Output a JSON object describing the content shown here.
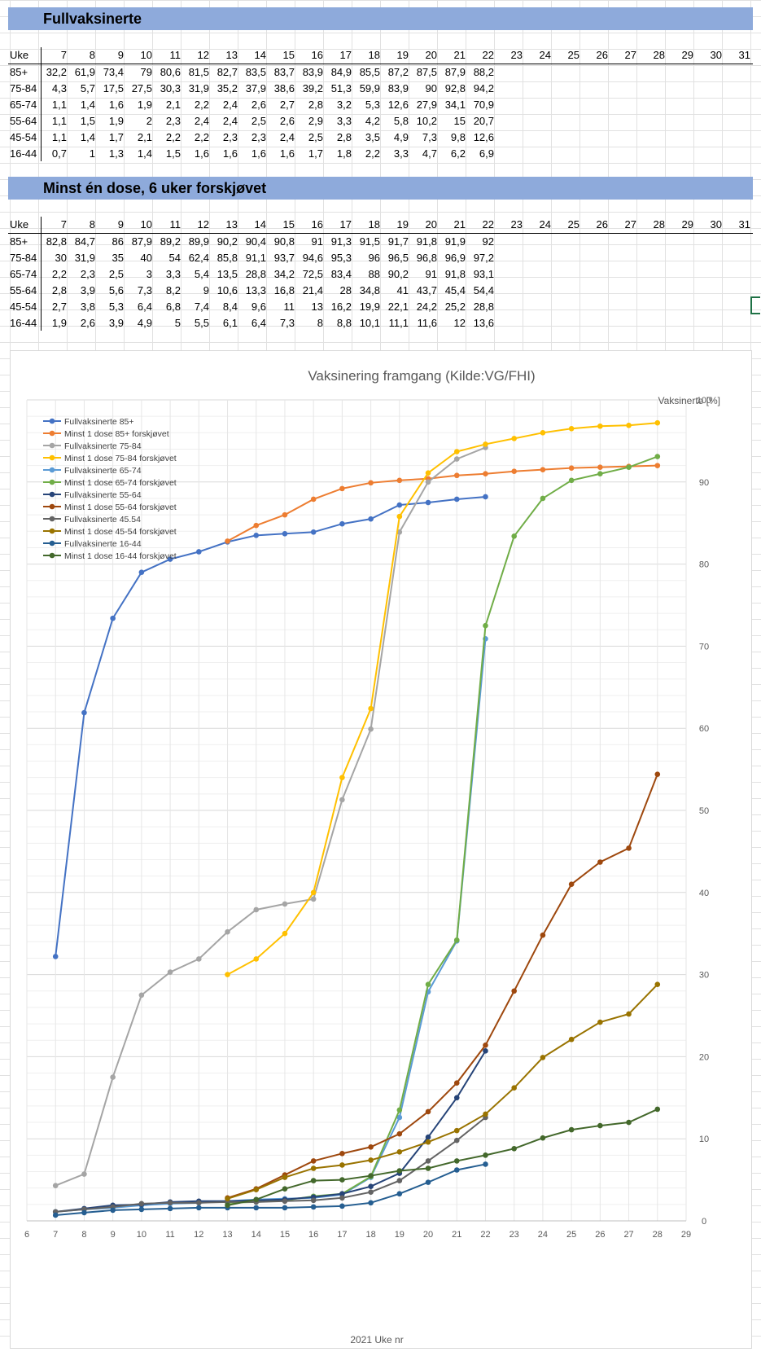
{
  "table1": {
    "title": "Fullvaksinerte",
    "header_label": "Uke",
    "weeks": [
      "7",
      "8",
      "9",
      "10",
      "11",
      "12",
      "13",
      "14",
      "15",
      "16",
      "17",
      "18",
      "19",
      "20",
      "21",
      "22",
      "23",
      "24",
      "25",
      "26",
      "27",
      "28",
      "29",
      "30",
      "31"
    ],
    "rows": [
      {
        "label": "85+",
        "values": [
          "32,2",
          "61,9",
          "73,4",
          "79",
          "80,6",
          "81,5",
          "82,7",
          "83,5",
          "83,7",
          "83,9",
          "84,9",
          "85,5",
          "87,2",
          "87,5",
          "87,9",
          "88,2"
        ]
      },
      {
        "label": "75-84",
        "values": [
          "4,3",
          "5,7",
          "17,5",
          "27,5",
          "30,3",
          "31,9",
          "35,2",
          "37,9",
          "38,6",
          "39,2",
          "51,3",
          "59,9",
          "83,9",
          "90",
          "92,8",
          "94,2"
        ]
      },
      {
        "label": "65-74",
        "values": [
          "1,1",
          "1,4",
          "1,6",
          "1,9",
          "2,1",
          "2,2",
          "2,4",
          "2,6",
          "2,7",
          "2,8",
          "3,2",
          "5,3",
          "12,6",
          "27,9",
          "34,1",
          "70,9"
        ]
      },
      {
        "label": "55-64",
        "values": [
          "1,1",
          "1,5",
          "1,9",
          "2",
          "2,3",
          "2,4",
          "2,4",
          "2,5",
          "2,6",
          "2,9",
          "3,3",
          "4,2",
          "5,8",
          "10,2",
          "15",
          "20,7"
        ]
      },
      {
        "label": "45-54",
        "values": [
          "1,1",
          "1,4",
          "1,7",
          "2,1",
          "2,2",
          "2,2",
          "2,3",
          "2,3",
          "2,4",
          "2,5",
          "2,8",
          "3,5",
          "4,9",
          "7,3",
          "9,8",
          "12,6"
        ]
      },
      {
        "label": "16-44",
        "values": [
          "0,7",
          "1",
          "1,3",
          "1,4",
          "1,5",
          "1,6",
          "1,6",
          "1,6",
          "1,6",
          "1,7",
          "1,8",
          "2,2",
          "3,3",
          "4,7",
          "6,2",
          "6,9"
        ]
      }
    ]
  },
  "table2": {
    "title": "Minst én dose, 6 uker forskjøvet",
    "header_label": "Uke",
    "weeks": [
      "7",
      "8",
      "9",
      "10",
      "11",
      "12",
      "13",
      "14",
      "15",
      "16",
      "17",
      "18",
      "19",
      "20",
      "21",
      "22",
      "23",
      "24",
      "25",
      "26",
      "27",
      "28",
      "29",
      "30",
      "31"
    ],
    "rows": [
      {
        "label": "85+",
        "values": [
          "82,8",
          "84,7",
          "86",
          "87,9",
          "89,2",
          "89,9",
          "90,2",
          "90,4",
          "90,8",
          "91",
          "91,3",
          "91,5",
          "91,7",
          "91,8",
          "91,9",
          "92"
        ]
      },
      {
        "label": "75-84",
        "values": [
          "30",
          "31,9",
          "35",
          "40",
          "54",
          "62,4",
          "85,8",
          "91,1",
          "93,7",
          "94,6",
          "95,3",
          "96",
          "96,5",
          "96,8",
          "96,9",
          "97,2"
        ]
      },
      {
        "label": "65-74",
        "values": [
          "2,2",
          "2,3",
          "2,5",
          "3",
          "3,3",
          "5,4",
          "13,5",
          "28,8",
          "34,2",
          "72,5",
          "83,4",
          "88",
          "90,2",
          "91",
          "91,8",
          "93,1"
        ]
      },
      {
        "label": "55-64",
        "values": [
          "2,8",
          "3,9",
          "5,6",
          "7,3",
          "8,2",
          "9",
          "10,6",
          "13,3",
          "16,8",
          "21,4",
          "28",
          "34,8",
          "41",
          "43,7",
          "45,4",
          "54,4"
        ]
      },
      {
        "label": "45-54",
        "values": [
          "2,7",
          "3,8",
          "5,3",
          "6,4",
          "6,8",
          "7,4",
          "8,4",
          "9,6",
          "11",
          "13",
          "16,2",
          "19,9",
          "22,1",
          "24,2",
          "25,2",
          "28,8"
        ]
      },
      {
        "label": "16-44",
        "values": [
          "1,9",
          "2,6",
          "3,9",
          "4,9",
          "5",
          "5,5",
          "6,1",
          "6,4",
          "7,3",
          "8",
          "8,8",
          "10,1",
          "11,1",
          "11,6",
          "12",
          "13,6"
        ]
      }
    ]
  },
  "chart_data": {
    "type": "line",
    "title": "Vaksinering framgang (Kilde:VG/FHI)",
    "xlabel": "2021 Uke nr",
    "ylabel": "Vaksinerte [%]",
    "xlim": [
      6,
      29
    ],
    "ylim": [
      0,
      100
    ],
    "x_ticks": [
      6,
      7,
      8,
      9,
      10,
      11,
      12,
      13,
      14,
      15,
      16,
      17,
      18,
      19,
      20,
      21,
      22,
      23,
      24,
      25,
      26,
      27,
      28,
      29
    ],
    "y_ticks": [
      0,
      10,
      20,
      30,
      40,
      50,
      60,
      70,
      80,
      90,
      100
    ],
    "y_axis_side": "right",
    "grid": true,
    "legend_position": "top-left",
    "series": [
      {
        "name": "Fullvaksinerte 85+",
        "color": "#4472c4",
        "x": [
          7,
          8,
          9,
          10,
          11,
          12,
          13,
          14,
          15,
          16,
          17,
          18,
          19,
          20,
          21,
          22
        ],
        "y": [
          32.2,
          61.9,
          73.4,
          79,
          80.6,
          81.5,
          82.7,
          83.5,
          83.7,
          83.9,
          84.9,
          85.5,
          87.2,
          87.5,
          87.9,
          88.2
        ]
      },
      {
        "name": "Minst 1 dose 85+ forskjøvet",
        "color": "#ed7d31",
        "x": [
          13,
          14,
          15,
          16,
          17,
          18,
          19,
          20,
          21,
          22,
          23,
          24,
          25,
          26,
          27,
          28
        ],
        "y": [
          82.8,
          84.7,
          86,
          87.9,
          89.2,
          89.9,
          90.2,
          90.4,
          90.8,
          91,
          91.3,
          91.5,
          91.7,
          91.8,
          91.9,
          92
        ]
      },
      {
        "name": "Fullvaksinerte 75-84",
        "color": "#a5a5a5",
        "x": [
          7,
          8,
          9,
          10,
          11,
          12,
          13,
          14,
          15,
          16,
          17,
          18,
          19,
          20,
          21,
          22
        ],
        "y": [
          4.3,
          5.7,
          17.5,
          27.5,
          30.3,
          31.9,
          35.2,
          37.9,
          38.6,
          39.2,
          51.3,
          59.9,
          83.9,
          90,
          92.8,
          94.2
        ]
      },
      {
        "name": "Minst 1 dose 75-84 forskjøvet",
        "color": "#ffc000",
        "x": [
          13,
          14,
          15,
          16,
          17,
          18,
          19,
          20,
          21,
          22,
          23,
          24,
          25,
          26,
          27,
          28
        ],
        "y": [
          30,
          31.9,
          35,
          40,
          54,
          62.4,
          85.8,
          91.1,
          93.7,
          94.6,
          95.3,
          96,
          96.5,
          96.8,
          96.9,
          97.2
        ]
      },
      {
        "name": "Fullvaksinerte 65-74",
        "color": "#5b9bd5",
        "x": [
          7,
          8,
          9,
          10,
          11,
          12,
          13,
          14,
          15,
          16,
          17,
          18,
          19,
          20,
          21,
          22
        ],
        "y": [
          1.1,
          1.4,
          1.6,
          1.9,
          2.1,
          2.2,
          2.4,
          2.6,
          2.7,
          2.8,
          3.2,
          5.3,
          12.6,
          27.9,
          34.1,
          70.9
        ]
      },
      {
        "name": "Minst 1 dose 65-74 forskjøvet",
        "color": "#70ad47",
        "x": [
          13,
          14,
          15,
          16,
          17,
          18,
          19,
          20,
          21,
          22,
          23,
          24,
          25,
          26,
          27,
          28
        ],
        "y": [
          2.2,
          2.3,
          2.5,
          3,
          3.3,
          5.4,
          13.5,
          28.8,
          34.2,
          72.5,
          83.4,
          88,
          90.2,
          91,
          91.8,
          93.1
        ]
      },
      {
        "name": "Fullvaksinerte 55-64",
        "color": "#264478",
        "x": [
          7,
          8,
          9,
          10,
          11,
          12,
          13,
          14,
          15,
          16,
          17,
          18,
          19,
          20,
          21,
          22
        ],
        "y": [
          1.1,
          1.5,
          1.9,
          2,
          2.3,
          2.4,
          2.4,
          2.5,
          2.6,
          2.9,
          3.3,
          4.2,
          5.8,
          10.2,
          15,
          20.7
        ]
      },
      {
        "name": "Minst 1 dose 55-64 forskjøvet",
        "color": "#9e480e",
        "x": [
          13,
          14,
          15,
          16,
          17,
          18,
          19,
          20,
          21,
          22,
          23,
          24,
          25,
          26,
          27,
          28
        ],
        "y": [
          2.8,
          3.9,
          5.6,
          7.3,
          8.2,
          9,
          10.6,
          13.3,
          16.8,
          21.4,
          28,
          34.8,
          41,
          43.7,
          45.4,
          54.4
        ]
      },
      {
        "name": "Fullvaksinerte 45.54",
        "color": "#636363",
        "x": [
          7,
          8,
          9,
          10,
          11,
          12,
          13,
          14,
          15,
          16,
          17,
          18,
          19,
          20,
          21,
          22
        ],
        "y": [
          1.1,
          1.4,
          1.7,
          2.1,
          2.2,
          2.2,
          2.3,
          2.3,
          2.4,
          2.5,
          2.8,
          3.5,
          4.9,
          7.3,
          9.8,
          12.6
        ]
      },
      {
        "name": "Minst 1 dose 45-54 forskjøvet",
        "color": "#997300",
        "x": [
          13,
          14,
          15,
          16,
          17,
          18,
          19,
          20,
          21,
          22,
          23,
          24,
          25,
          26,
          27,
          28
        ],
        "y": [
          2.7,
          3.8,
          5.3,
          6.4,
          6.8,
          7.4,
          8.4,
          9.6,
          11,
          13,
          16.2,
          19.9,
          22.1,
          24.2,
          25.2,
          28.8
        ]
      },
      {
        "name": "Fullvaksinerte 16-44",
        "color": "#255e91",
        "x": [
          7,
          8,
          9,
          10,
          11,
          12,
          13,
          14,
          15,
          16,
          17,
          18,
          19,
          20,
          21,
          22
        ],
        "y": [
          0.7,
          1,
          1.3,
          1.4,
          1.5,
          1.6,
          1.6,
          1.6,
          1.6,
          1.7,
          1.8,
          2.2,
          3.3,
          4.7,
          6.2,
          6.9
        ]
      },
      {
        "name": "Minst 1 dose 16-44 forskjøvet",
        "color": "#43682b",
        "x": [
          13,
          14,
          15,
          16,
          17,
          18,
          19,
          20,
          21,
          22,
          23,
          24,
          25,
          26,
          27,
          28
        ],
        "y": [
          1.9,
          2.6,
          3.9,
          4.9,
          5,
          5.5,
          6.1,
          6.4,
          7.3,
          8,
          8.8,
          10.1,
          11.1,
          11.6,
          12,
          13.6
        ]
      }
    ]
  }
}
